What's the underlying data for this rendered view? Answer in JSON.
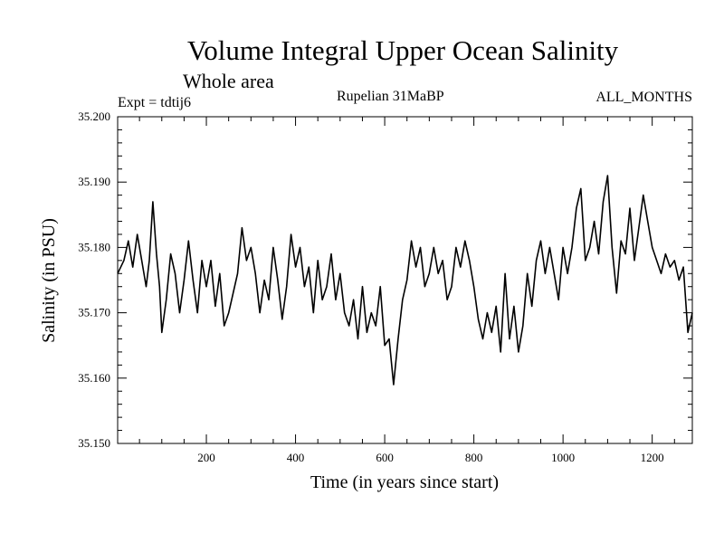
{
  "chart_data": {
    "type": "line",
    "title": "Volume Integral Upper Ocean Salinity",
    "subtitle": "Whole area",
    "experiment_label": "Expt = tdtij6",
    "period_label": "Rupelian  31MaBP",
    "months_label": "ALL_MONTHS",
    "xlabel": "Time (in years since start)",
    "ylabel": "Salinity (in PSU)",
    "xlim": [
      1,
      1290
    ],
    "ylim": [
      35.15,
      35.2
    ],
    "xticks": [
      200,
      400,
      600,
      800,
      1000,
      1200
    ],
    "xtick_labels": [
      "200",
      "400",
      "600",
      "800",
      "1000",
      "1200"
    ],
    "yticks": [
      35.15,
      35.16,
      35.17,
      35.18,
      35.19,
      35.2
    ],
    "ytick_labels": [
      "35.150",
      "35.160",
      "35.170",
      "35.180",
      "35.190",
      "35.200"
    ],
    "grid": false,
    "series": [
      {
        "name": "Salinity",
        "color": "#000000",
        "x": [
          1,
          15,
          25,
          35,
          45,
          55,
          65,
          72,
          80,
          88,
          95,
          100,
          110,
          120,
          130,
          140,
          150,
          160,
          170,
          180,
          190,
          200,
          210,
          220,
          230,
          240,
          250,
          260,
          270,
          280,
          290,
          300,
          310,
          320,
          330,
          340,
          350,
          360,
          370,
          380,
          390,
          400,
          410,
          420,
          430,
          440,
          450,
          460,
          470,
          480,
          490,
          500,
          510,
          520,
          530,
          540,
          550,
          560,
          570,
          580,
          590,
          600,
          610,
          620,
          630,
          640,
          650,
          660,
          670,
          680,
          690,
          700,
          710,
          720,
          730,
          740,
          750,
          760,
          770,
          780,
          790,
          800,
          810,
          820,
          830,
          840,
          850,
          860,
          870,
          880,
          890,
          900,
          910,
          920,
          930,
          940,
          950,
          960,
          970,
          980,
          990,
          1000,
          1010,
          1020,
          1030,
          1040,
          1050,
          1060,
          1070,
          1080,
          1090,
          1100,
          1110,
          1120,
          1130,
          1140,
          1150,
          1160,
          1170,
          1180,
          1190,
          1200,
          1210,
          1220,
          1230,
          1240,
          1250,
          1260,
          1270,
          1280,
          1290
        ],
        "y": [
          35.176,
          35.178,
          35.181,
          35.177,
          35.182,
          35.178,
          35.174,
          35.178,
          35.187,
          35.179,
          35.174,
          35.167,
          35.172,
          35.179,
          35.176,
          35.17,
          35.175,
          35.181,
          35.175,
          35.17,
          35.178,
          35.174,
          35.178,
          35.171,
          35.176,
          35.168,
          35.17,
          35.173,
          35.176,
          35.183,
          35.178,
          35.18,
          35.176,
          35.17,
          35.175,
          35.172,
          35.18,
          35.175,
          35.169,
          35.174,
          35.182,
          35.177,
          35.18,
          35.174,
          35.177,
          35.17,
          35.178,
          35.172,
          35.174,
          35.179,
          35.172,
          35.176,
          35.17,
          35.168,
          35.172,
          35.166,
          35.174,
          35.167,
          35.17,
          35.168,
          35.174,
          35.165,
          35.166,
          35.159,
          35.166,
          35.172,
          35.175,
          35.181,
          35.177,
          35.18,
          35.174,
          35.176,
          35.18,
          35.176,
          35.178,
          35.172,
          35.174,
          35.18,
          35.177,
          35.181,
          35.178,
          35.174,
          35.169,
          35.166,
          35.17,
          35.167,
          35.171,
          35.164,
          35.176,
          35.166,
          35.171,
          35.164,
          35.168,
          35.176,
          35.171,
          35.178,
          35.181,
          35.176,
          35.18,
          35.176,
          35.172,
          35.18,
          35.176,
          35.18,
          35.186,
          35.189,
          35.178,
          35.18,
          35.184,
          35.179,
          35.187,
          35.191,
          35.18,
          35.173,
          35.181,
          35.179,
          35.186,
          35.178,
          35.183,
          35.188,
          35.184,
          35.18,
          35.178,
          35.176,
          35.179,
          35.177,
          35.178,
          35.175,
          35.177,
          35.167,
          35.17
        ]
      }
    ]
  }
}
